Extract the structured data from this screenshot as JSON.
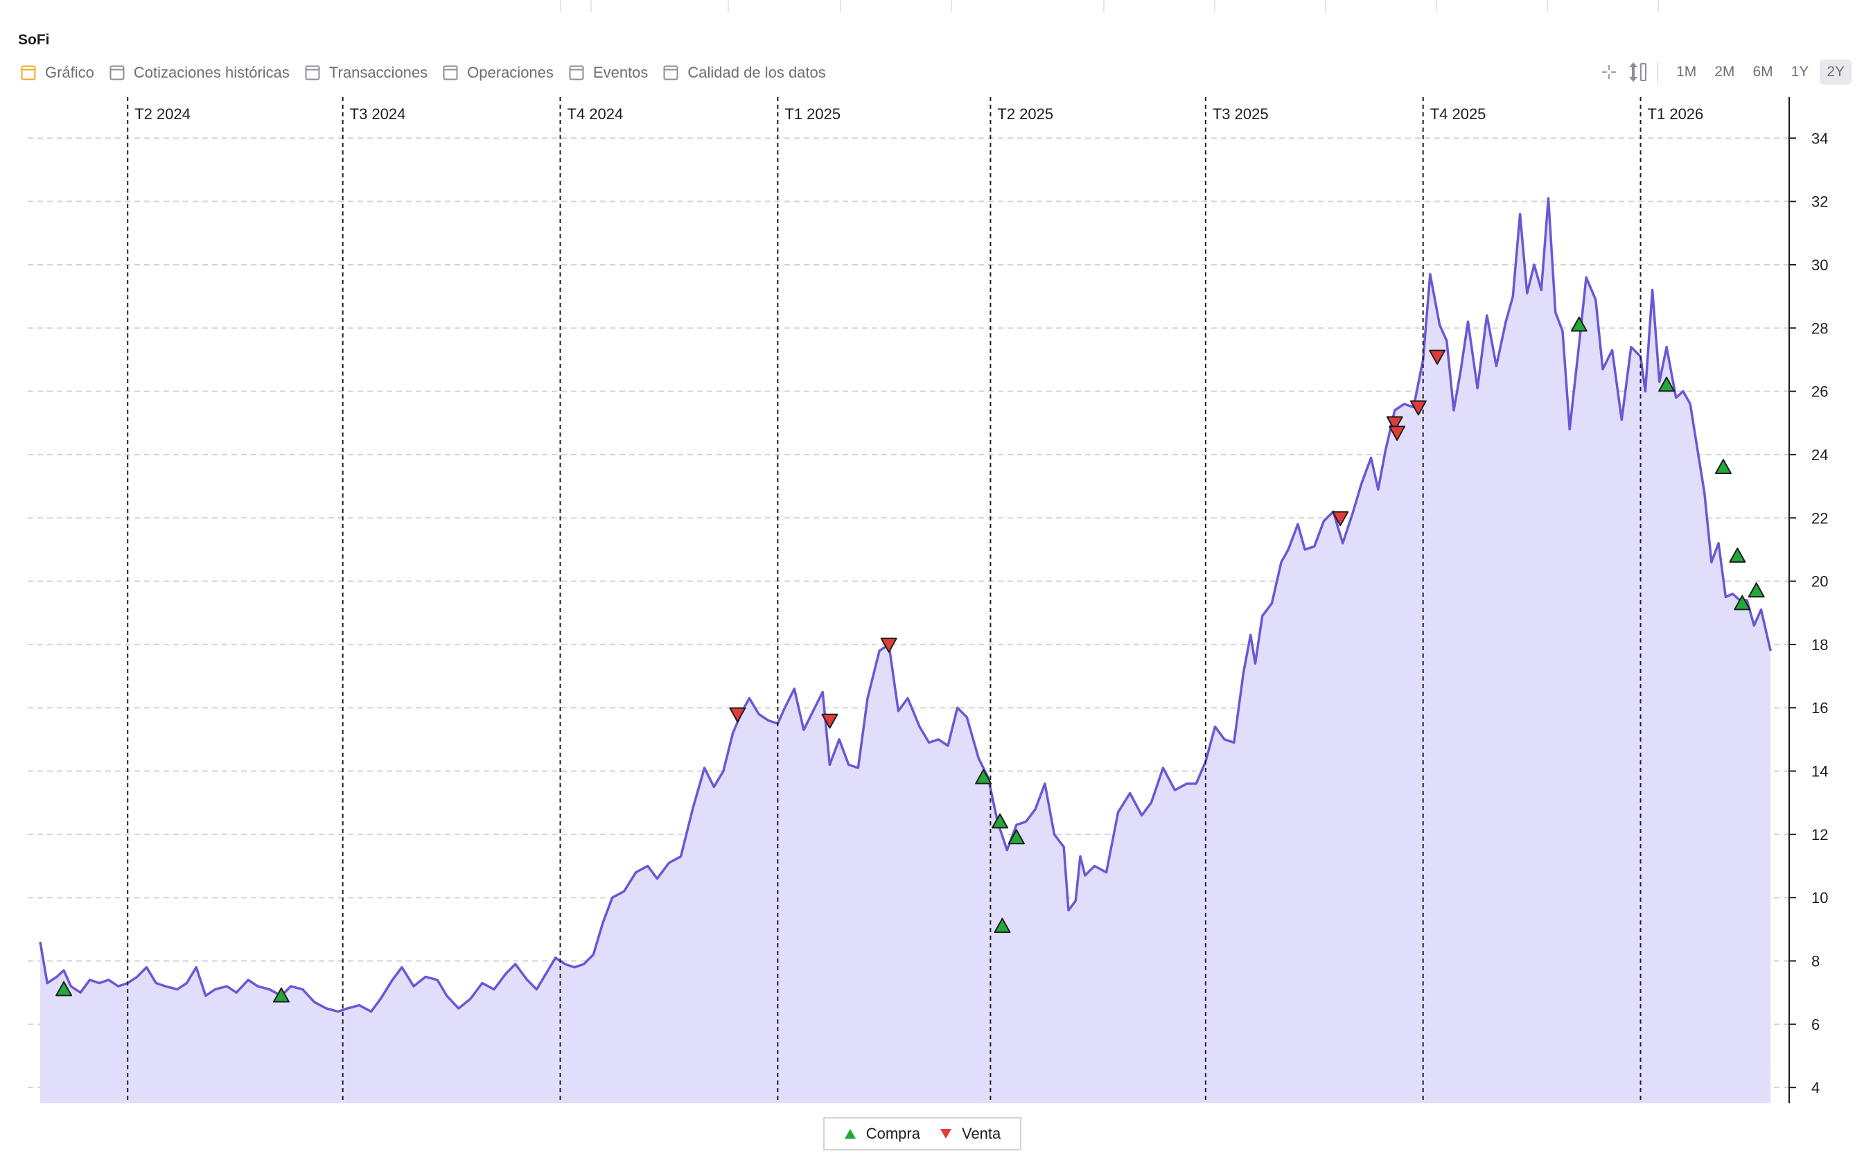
{
  "app": {
    "title": "SoFi"
  },
  "tabs": [
    {
      "label": "Gráfico",
      "active": true,
      "color": "#f5a623"
    },
    {
      "label": "Cotizaciones históricas",
      "active": false,
      "color": "#8e8e98"
    },
    {
      "label": "Transacciones",
      "active": false,
      "color": "#8e8e98"
    },
    {
      "label": "Operaciones",
      "active": false,
      "color": "#8e8e98"
    },
    {
      "label": "Eventos",
      "active": false,
      "color": "#8e8e98"
    },
    {
      "label": "Calidad de los datos",
      "active": false,
      "color": "#8e8e98"
    }
  ],
  "toolbar": {
    "icons": [
      "crosshair-icon",
      "vertical-zoom-icon"
    ],
    "ranges": [
      "1M",
      "2M",
      "6M",
      "1Y",
      "2Y"
    ],
    "selected_range": "2Y"
  },
  "legend": {
    "buy": "Compra",
    "sell": "Venta"
  },
  "colors": {
    "line": "#6b57d6",
    "fill": "#e0defa",
    "buy": "#23a83a",
    "sell": "#e23b3b",
    "grid": "#d2d2d8",
    "quarter_line": "#1d1d1f"
  },
  "chart_data": {
    "type": "area",
    "x_unit": "date",
    "y_range": [
      3.5,
      35.3
    ],
    "y_ticks": [
      4,
      6,
      8,
      10,
      12,
      14,
      16,
      18,
      20,
      22,
      24,
      26,
      28,
      30,
      32,
      34
    ],
    "x_range": [
      "2024-02-24",
      "2026-02-27"
    ],
    "grid": true,
    "quarters": [
      {
        "label": "T2 2024",
        "date": "2024-04-01"
      },
      {
        "label": "T3 2024",
        "date": "2024-07-01"
      },
      {
        "label": "T4 2024",
        "date": "2024-10-01"
      },
      {
        "label": "T1 2025",
        "date": "2025-01-01"
      },
      {
        "label": "T2 2025",
        "date": "2025-04-01"
      },
      {
        "label": "T3 2025",
        "date": "2025-07-01"
      },
      {
        "label": "T4 2025",
        "date": "2025-10-01"
      },
      {
        "label": "T1 2026",
        "date": "2026-01-01"
      }
    ],
    "series": [
      {
        "values": [
          [
            "2024-02-24",
            8.6
          ],
          [
            "2024-02-27",
            7.3
          ],
          [
            "2024-03-02",
            7.5
          ],
          [
            "2024-03-05",
            7.7
          ],
          [
            "2024-03-08",
            7.2
          ],
          [
            "2024-03-12",
            7.0
          ],
          [
            "2024-03-16",
            7.4
          ],
          [
            "2024-03-20",
            7.3
          ],
          [
            "2024-03-24",
            7.4
          ],
          [
            "2024-03-28",
            7.2
          ],
          [
            "2024-04-01",
            7.3
          ],
          [
            "2024-04-05",
            7.5
          ],
          [
            "2024-04-09",
            7.8
          ],
          [
            "2024-04-13",
            7.3
          ],
          [
            "2024-04-17",
            7.2
          ],
          [
            "2024-04-22",
            7.1
          ],
          [
            "2024-04-26",
            7.3
          ],
          [
            "2024-04-30",
            7.8
          ],
          [
            "2024-05-04",
            6.9
          ],
          [
            "2024-05-08",
            7.1
          ],
          [
            "2024-05-13",
            7.2
          ],
          [
            "2024-05-17",
            7.0
          ],
          [
            "2024-05-22",
            7.4
          ],
          [
            "2024-05-26",
            7.2
          ],
          [
            "2024-05-31",
            7.1
          ],
          [
            "2024-06-05",
            6.9
          ],
          [
            "2024-06-09",
            7.2
          ],
          [
            "2024-06-14",
            7.1
          ],
          [
            "2024-06-19",
            6.7
          ],
          [
            "2024-06-24",
            6.5
          ],
          [
            "2024-06-29",
            6.4
          ],
          [
            "2024-07-03",
            6.5
          ],
          [
            "2024-07-08",
            6.6
          ],
          [
            "2024-07-13",
            6.4
          ],
          [
            "2024-07-17",
            6.8
          ],
          [
            "2024-07-22",
            7.4
          ],
          [
            "2024-07-26",
            7.8
          ],
          [
            "2024-07-31",
            7.2
          ],
          [
            "2024-08-05",
            7.5
          ],
          [
            "2024-08-10",
            7.4
          ],
          [
            "2024-08-14",
            6.9
          ],
          [
            "2024-08-19",
            6.5
          ],
          [
            "2024-08-24",
            6.8
          ],
          [
            "2024-08-29",
            7.3
          ],
          [
            "2024-09-03",
            7.1
          ],
          [
            "2024-09-08",
            7.6
          ],
          [
            "2024-09-12",
            7.9
          ],
          [
            "2024-09-17",
            7.4
          ],
          [
            "2024-09-21",
            7.1
          ],
          [
            "2024-09-25",
            7.6
          ],
          [
            "2024-09-29",
            8.1
          ],
          [
            "2024-10-03",
            7.9
          ],
          [
            "2024-10-07",
            7.8
          ],
          [
            "2024-10-11",
            7.9
          ],
          [
            "2024-10-15",
            8.2
          ],
          [
            "2024-10-19",
            9.2
          ],
          [
            "2024-10-23",
            10.0
          ],
          [
            "2024-10-28",
            10.2
          ],
          [
            "2024-11-02",
            10.8
          ],
          [
            "2024-11-07",
            11.0
          ],
          [
            "2024-11-11",
            10.6
          ],
          [
            "2024-11-16",
            11.1
          ],
          [
            "2024-11-21",
            11.3
          ],
          [
            "2024-11-26",
            12.8
          ],
          [
            "2024-12-01",
            14.1
          ],
          [
            "2024-12-05",
            13.5
          ],
          [
            "2024-12-09",
            14.0
          ],
          [
            "2024-12-13",
            15.2
          ],
          [
            "2024-12-17",
            15.9
          ],
          [
            "2024-12-20",
            16.3
          ],
          [
            "2024-12-24",
            15.8
          ],
          [
            "2024-12-28",
            15.6
          ],
          [
            "2025-01-01",
            15.5
          ],
          [
            "2025-01-04",
            16.0
          ],
          [
            "2025-01-08",
            16.6
          ],
          [
            "2025-01-12",
            15.3
          ],
          [
            "2025-01-16",
            15.9
          ],
          [
            "2025-01-20",
            16.5
          ],
          [
            "2025-01-23",
            14.2
          ],
          [
            "2025-01-27",
            15.0
          ],
          [
            "2025-01-31",
            14.2
          ],
          [
            "2025-02-04",
            14.1
          ],
          [
            "2025-02-08",
            16.3
          ],
          [
            "2025-02-13",
            17.8
          ],
          [
            "2025-02-17",
            18.0
          ],
          [
            "2025-02-21",
            15.9
          ],
          [
            "2025-02-25",
            16.3
          ],
          [
            "2025-03-02",
            15.4
          ],
          [
            "2025-03-06",
            14.9
          ],
          [
            "2025-03-10",
            15.0
          ],
          [
            "2025-03-14",
            14.8
          ],
          [
            "2025-03-18",
            16.0
          ],
          [
            "2025-03-22",
            15.7
          ],
          [
            "2025-03-27",
            14.4
          ],
          [
            "2025-03-31",
            13.8
          ],
          [
            "2025-04-04",
            12.4
          ],
          [
            "2025-04-08",
            11.5
          ],
          [
            "2025-04-12",
            12.3
          ],
          [
            "2025-04-16",
            12.4
          ],
          [
            "2025-04-20",
            12.8
          ],
          [
            "2025-04-24",
            13.6
          ],
          [
            "2025-04-28",
            12.0
          ],
          [
            "2025-05-02",
            11.6
          ],
          [
            "2025-05-04",
            9.6
          ],
          [
            "2025-05-07",
            9.9
          ],
          [
            "2025-05-09",
            11.3
          ],
          [
            "2025-05-11",
            10.7
          ],
          [
            "2025-05-15",
            11.0
          ],
          [
            "2025-05-20",
            10.8
          ],
          [
            "2025-05-25",
            12.7
          ],
          [
            "2025-05-30",
            13.3
          ],
          [
            "2025-06-04",
            12.6
          ],
          [
            "2025-06-08",
            13.0
          ],
          [
            "2025-06-13",
            14.1
          ],
          [
            "2025-06-18",
            13.4
          ],
          [
            "2025-06-23",
            13.6
          ],
          [
            "2025-06-27",
            13.6
          ],
          [
            "2025-07-01",
            14.3
          ],
          [
            "2025-07-05",
            15.4
          ],
          [
            "2025-07-09",
            15.0
          ],
          [
            "2025-07-13",
            14.9
          ],
          [
            "2025-07-17",
            17.1
          ],
          [
            "2025-07-20",
            18.3
          ],
          [
            "2025-07-22",
            17.4
          ],
          [
            "2025-07-25",
            18.9
          ],
          [
            "2025-07-29",
            19.3
          ],
          [
            "2025-08-02",
            20.6
          ],
          [
            "2025-08-05",
            21.0
          ],
          [
            "2025-08-09",
            21.8
          ],
          [
            "2025-08-12",
            21.0
          ],
          [
            "2025-08-16",
            21.1
          ],
          [
            "2025-08-20",
            21.9
          ],
          [
            "2025-08-24",
            22.2
          ],
          [
            "2025-08-28",
            21.2
          ],
          [
            "2025-09-01",
            22.1
          ],
          [
            "2025-09-05",
            23.1
          ],
          [
            "2025-09-09",
            23.9
          ],
          [
            "2025-09-12",
            22.9
          ],
          [
            "2025-09-15",
            24.1
          ],
          [
            "2025-09-19",
            25.4
          ],
          [
            "2025-09-23",
            25.6
          ],
          [
            "2025-09-27",
            25.5
          ],
          [
            "2025-10-01",
            27.0
          ],
          [
            "2025-10-04",
            29.7
          ],
          [
            "2025-10-08",
            28.1
          ],
          [
            "2025-10-11",
            27.6
          ],
          [
            "2025-10-14",
            25.4
          ],
          [
            "2025-10-17",
            26.7
          ],
          [
            "2025-10-20",
            28.2
          ],
          [
            "2025-10-24",
            26.1
          ],
          [
            "2025-10-28",
            28.4
          ],
          [
            "2025-11-01",
            26.8
          ],
          [
            "2025-11-05",
            28.2
          ],
          [
            "2025-11-08",
            29.0
          ],
          [
            "2025-11-11",
            31.6
          ],
          [
            "2025-11-14",
            29.1
          ],
          [
            "2025-11-17",
            30.0
          ],
          [
            "2025-11-20",
            29.2
          ],
          [
            "2025-11-23",
            32.1
          ],
          [
            "2025-11-26",
            28.5
          ],
          [
            "2025-11-29",
            27.9
          ],
          [
            "2025-12-02",
            24.8
          ],
          [
            "2025-12-06",
            27.5
          ],
          [
            "2025-12-09",
            29.6
          ],
          [
            "2025-12-13",
            28.9
          ],
          [
            "2025-12-16",
            26.7
          ],
          [
            "2025-12-20",
            27.3
          ],
          [
            "2025-12-24",
            25.1
          ],
          [
            "2025-12-28",
            27.4
          ],
          [
            "2026-01-01",
            27.1
          ],
          [
            "2026-01-03",
            26.0
          ],
          [
            "2026-01-06",
            29.2
          ],
          [
            "2026-01-09",
            26.3
          ],
          [
            "2026-01-12",
            27.4
          ],
          [
            "2026-01-16",
            25.8
          ],
          [
            "2026-01-19",
            26.0
          ],
          [
            "2026-01-22",
            25.6
          ],
          [
            "2026-01-25",
            24.2
          ],
          [
            "2026-01-28",
            22.8
          ],
          [
            "2026-01-31",
            20.6
          ],
          [
            "2026-02-03",
            21.2
          ],
          [
            "2026-02-06",
            19.5
          ],
          [
            "2026-02-09",
            19.6
          ],
          [
            "2026-02-12",
            19.4
          ],
          [
            "2026-02-15",
            19.4
          ],
          [
            "2026-02-18",
            18.6
          ],
          [
            "2026-02-21",
            19.1
          ],
          [
            "2026-02-25",
            17.8
          ]
        ]
      }
    ],
    "markers": [
      {
        "type": "buy",
        "date": "2024-03-05",
        "value": 7.1
      },
      {
        "type": "buy",
        "date": "2024-06-05",
        "value": 6.9
      },
      {
        "type": "sell",
        "date": "2024-12-15",
        "value": 15.8
      },
      {
        "type": "sell",
        "date": "2025-01-23",
        "value": 15.6
      },
      {
        "type": "sell",
        "date": "2025-02-17",
        "value": 18.0
      },
      {
        "type": "buy",
        "date": "2025-03-29",
        "value": 13.8
      },
      {
        "type": "buy",
        "date": "2025-04-05",
        "value": 12.4
      },
      {
        "type": "buy",
        "date": "2025-04-12",
        "value": 11.9
      },
      {
        "type": "buy",
        "date": "2025-04-06",
        "value": 9.1
      },
      {
        "type": "sell",
        "date": "2025-08-27",
        "value": 22.0
      },
      {
        "type": "sell",
        "date": "2025-09-19",
        "value": 25.0
      },
      {
        "type": "sell",
        "date": "2025-09-20",
        "value": 24.7
      },
      {
        "type": "sell",
        "date": "2025-09-29",
        "value": 25.5
      },
      {
        "type": "sell",
        "date": "2025-10-07",
        "value": 27.1
      },
      {
        "type": "buy",
        "date": "2025-12-06",
        "value": 28.1
      },
      {
        "type": "buy",
        "date": "2026-01-12",
        "value": 26.2
      },
      {
        "type": "buy",
        "date": "2026-02-05",
        "value": 23.6
      },
      {
        "type": "buy",
        "date": "2026-02-11",
        "value": 20.8
      },
      {
        "type": "buy",
        "date": "2026-02-13",
        "value": 19.3
      },
      {
        "type": "buy",
        "date": "2026-02-19",
        "value": 19.7
      }
    ]
  }
}
